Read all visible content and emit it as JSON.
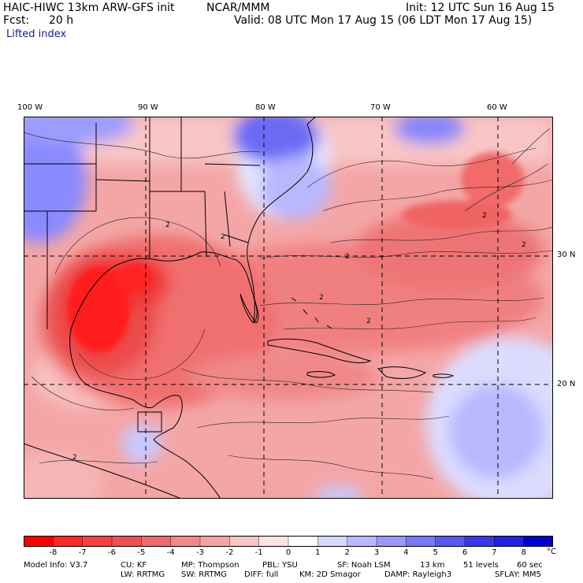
{
  "header": {
    "model_title": "HAIC-HIWC 13km ARW-GFS init",
    "org": "NCAR/MMM",
    "init": "Init: 12 UTC Sun 16 Aug 15",
    "fcst_label": "Fcst:",
    "fcst_value": "20 h",
    "valid": "Valid: 08 UTC Mon 17 Aug 15 (06 LDT Mon 17 Aug 15)",
    "field": "Lifted index"
  },
  "map": {
    "lon_labels": [
      "100 W",
      "90 W",
      "80 W",
      "70 W",
      "60 W"
    ],
    "lat_labels": [
      "30 N",
      "20 N"
    ],
    "contour_labels": [
      "2",
      "2",
      "2",
      "2",
      "2",
      "2",
      "2",
      "2"
    ],
    "colors": {
      "strong_neg": "#ff1010",
      "neg": "#f05a5a",
      "weak_neg": "#f5a0a0",
      "near_zero": "#fde0e0",
      "pos": "#8f8fff",
      "strong_pos": "#2020e0"
    }
  },
  "colorbar": {
    "labels": [
      "-8",
      "-7",
      "-6",
      "-5",
      "-4",
      "-3",
      "-2",
      "-1",
      "0",
      "1",
      "2",
      "3",
      "4",
      "5",
      "6",
      "7",
      "8"
    ],
    "unit": "°C",
    "colors": [
      "#ff0000",
      "#ff2828",
      "#f84040",
      "#f05050",
      "#f06a6a",
      "#f28888",
      "#f4a4a4",
      "#f8c4c4",
      "#fce4e4",
      "#ffffff",
      "#d8d8ff",
      "#b8b8ff",
      "#9898ff",
      "#7878f8",
      "#5858f0",
      "#3838e8",
      "#2020e0",
      "#0000d0"
    ]
  },
  "model_info": {
    "line1": [
      "Model Info: V3.7",
      "CU: KF",
      "MP: Thompson",
      "PBL: YSU",
      "SF: Noah LSM",
      "13 km",
      "51 levels",
      "60 sec"
    ],
    "line2": [
      "LW: RRTMG",
      "SW: RRTMG",
      "DIFF: full",
      "KM: 2D Smagor",
      "DAMP: Rayleigh3",
      "SFLAY: MM5"
    ]
  }
}
